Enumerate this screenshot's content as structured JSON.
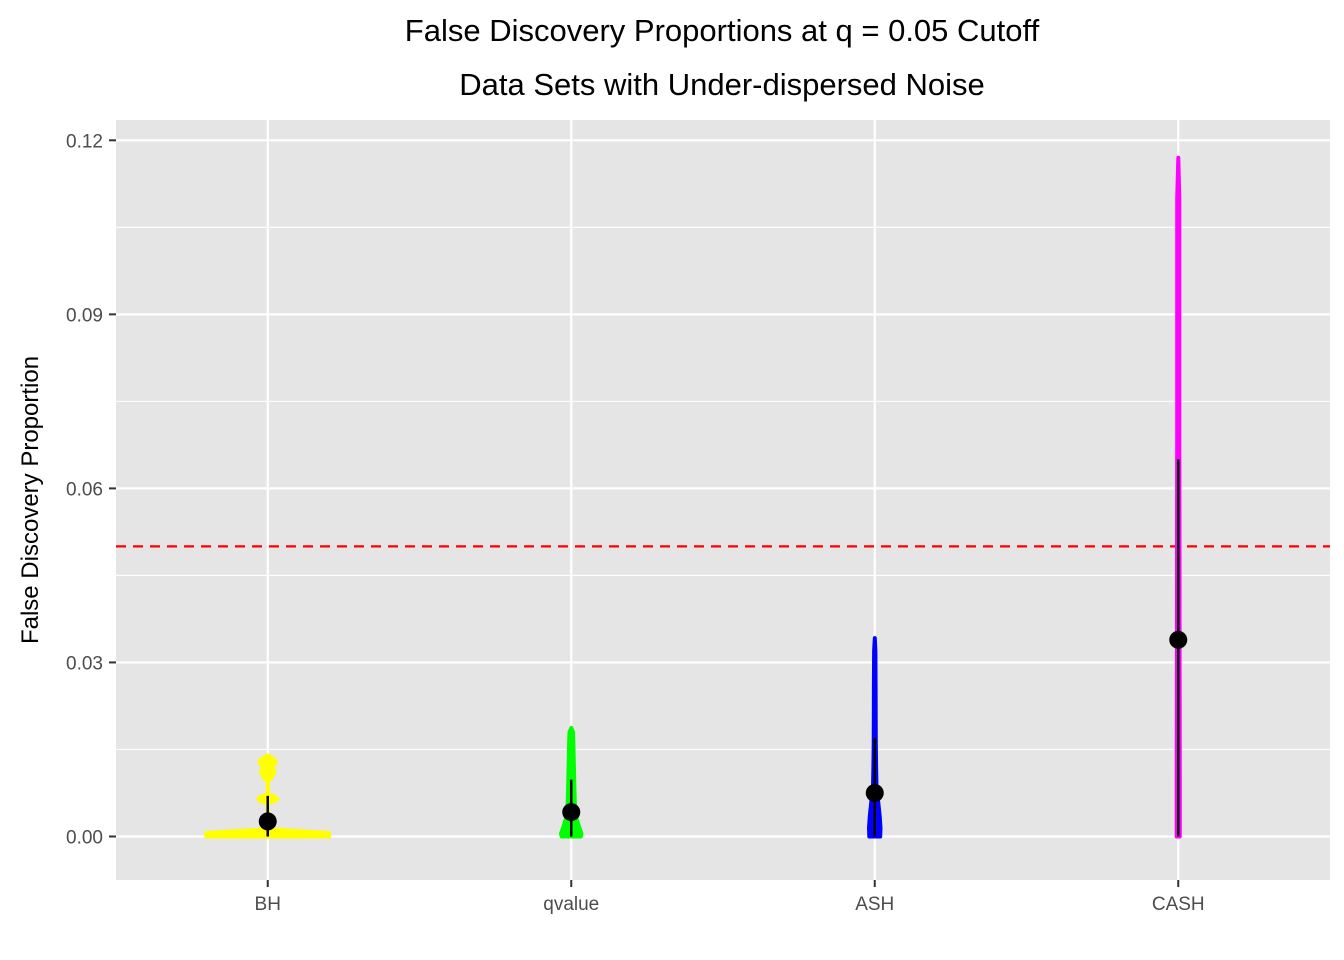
{
  "chart_data": {
    "type": "violin",
    "title": "False Discovery Proportions at q = 0.05 Cutoff",
    "subtitle": "Data Sets with Under-dispersed Noise",
    "xlabel": "",
    "ylabel": "False Discovery Proportion",
    "ylim": [
      -0.0075,
      0.1235
    ],
    "yticks": [
      "0.00",
      "0.03",
      "0.06",
      "0.09",
      "0.12"
    ],
    "ytick_values": [
      0,
      0.03,
      0.06,
      0.09,
      0.12
    ],
    "grid": true,
    "legend": "none",
    "reference_line": {
      "y": 0.05,
      "color": "#ff0000",
      "style": "dashed"
    },
    "categories": [
      "BH",
      "qvalue",
      "ASH",
      "CASH"
    ],
    "series": [
      {
        "category": "BH",
        "color": "#ffff00",
        "mean": 0.0026,
        "error_bar": [
          0,
          0.007
        ],
        "density": [
          [
            0,
            0.45
          ],
          [
            0.0006,
            0.45
          ],
          [
            0.0012,
            0.04
          ],
          [
            0.0018,
            0.02
          ],
          [
            0.004,
            0.0
          ],
          [
            0.0058,
            0.0
          ],
          [
            0.0061,
            0.05
          ],
          [
            0.0065,
            0.07
          ],
          [
            0.0069,
            0.05
          ],
          [
            0.0072,
            0.0
          ],
          [
            0.0095,
            0.0
          ],
          [
            0.0102,
            0.03
          ],
          [
            0.0112,
            0.05
          ],
          [
            0.0118,
            0.03
          ],
          [
            0.0124,
            0.05
          ],
          [
            0.013,
            0.06
          ],
          [
            0.0136,
            0.03
          ],
          [
            0.014,
            0.0
          ]
        ]
      },
      {
        "category": "qvalue",
        "color": "#00ff00",
        "mean": 0.0042,
        "error_bar": [
          0,
          0.0098
        ],
        "density": [
          [
            0,
            0.07
          ],
          [
            0.0005,
            0.075
          ],
          [
            0.0015,
            0.06
          ],
          [
            0.003,
            0.04
          ],
          [
            0.0045,
            0.028
          ],
          [
            0.0065,
            0.025
          ],
          [
            0.009,
            0.022
          ],
          [
            0.0115,
            0.02
          ],
          [
            0.0135,
            0.018
          ],
          [
            0.016,
            0.016
          ],
          [
            0.018,
            0.013
          ],
          [
            0.0187,
            0.0
          ]
        ]
      },
      {
        "category": "ASH",
        "color": "#0000ff",
        "mean": 0.0075,
        "error_bar": [
          0,
          0.017
        ],
        "density": [
          [
            0,
            0.04
          ],
          [
            0.0015,
            0.042
          ],
          [
            0.0035,
            0.036
          ],
          [
            0.006,
            0.025
          ],
          [
            0.0085,
            0.013
          ],
          [
            0.012,
            0.01
          ],
          [
            0.016,
            0.008
          ],
          [
            0.02,
            0.007
          ],
          [
            0.026,
            0.006
          ],
          [
            0.032,
            0.005
          ],
          [
            0.0342,
            0.0
          ]
        ]
      },
      {
        "category": "CASH",
        "color": "#ff00ff",
        "mean": 0.0339,
        "error_bar": [
          0,
          0.065
        ],
        "density": [
          [
            0,
            0.011
          ],
          [
            0.01,
            0.011
          ],
          [
            0.03,
            0.01
          ],
          [
            0.05,
            0.009
          ],
          [
            0.07,
            0.008
          ],
          [
            0.09,
            0.008
          ],
          [
            0.11,
            0.008
          ],
          [
            0.117,
            0.0
          ]
        ]
      }
    ]
  }
}
